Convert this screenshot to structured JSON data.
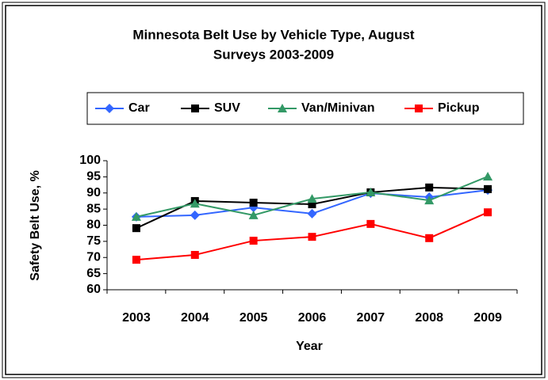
{
  "chart_data": {
    "type": "line",
    "title": "Minnesota Belt Use by Vehicle Type, August",
    "subtitle": "Surveys 2003-2009",
    "x_label": "Year",
    "y_label": "Safety Belt Use, %",
    "categories": [
      "2003",
      "2004",
      "2005",
      "2006",
      "2007",
      "2008",
      "2009"
    ],
    "series": [
      {
        "name": "Car",
        "color": "#3366ff",
        "marker": "diamond",
        "values": [
          82.6,
          83.1,
          85.5,
          83.6,
          89.9,
          88.7,
          90.9
        ]
      },
      {
        "name": "SUV",
        "color": "#000000",
        "marker": "square",
        "values": [
          79.1,
          87.5,
          87.0,
          86.5,
          90.2,
          91.7,
          91.2
        ]
      },
      {
        "name": "Van/Minivan",
        "color": "#339966",
        "marker": "triangle",
        "values": [
          82.6,
          86.7,
          83.1,
          88.2,
          90.2,
          87.7,
          95.1
        ]
      },
      {
        "name": "Pickup",
        "color": "#ff0000",
        "marker": "square",
        "values": [
          69.3,
          70.8,
          75.2,
          76.4,
          80.4,
          76.0,
          84.0
        ]
      }
    ],
    "ylim": [
      60,
      100
    ],
    "yticks": [
      60,
      65,
      70,
      75,
      80,
      85,
      90,
      95,
      100
    ],
    "grid": false,
    "legend": "top"
  }
}
